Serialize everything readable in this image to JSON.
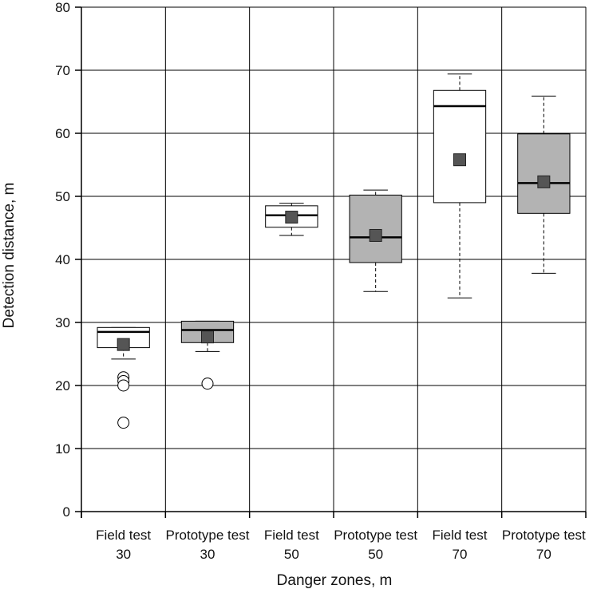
{
  "chart_data": {
    "type": "box",
    "title": "",
    "xlabel": "Danger zones, m",
    "ylabel": "Detection distance, m",
    "ylim": [
      0,
      80
    ],
    "yticks": [
      0,
      10,
      20,
      30,
      40,
      50,
      60,
      70,
      80
    ],
    "grid": true,
    "categories": [
      {
        "line1": "Field test",
        "line2": "30"
      },
      {
        "line1": "Prototype test",
        "line2": "30"
      },
      {
        "line1": "Field test",
        "line2": "50"
      },
      {
        "line1": "Prototype test",
        "line2": "50"
      },
      {
        "line1": "Field test",
        "line2": "70"
      },
      {
        "line1": "Prototype test",
        "line2": "70"
      }
    ],
    "boxes": [
      {
        "whisker_low": 24.2,
        "q1": 26.0,
        "median": 28.5,
        "q3": 29.2,
        "whisker_high": 29.2,
        "mean": 26.5,
        "outliers": [
          21.3,
          20.7,
          20.0,
          14.1
        ],
        "fill": "#ffffff"
      },
      {
        "whisker_low": 25.4,
        "q1": 26.8,
        "median": 28.8,
        "q3": 30.2,
        "whisker_high": 30.2,
        "mean": 27.7,
        "outliers": [
          20.3
        ],
        "fill": "#b3b3b3"
      },
      {
        "whisker_low": 43.8,
        "q1": 45.1,
        "median": 47.0,
        "q3": 48.5,
        "whisker_high": 48.9,
        "mean": 46.7,
        "outliers": [],
        "fill": "#ffffff"
      },
      {
        "whisker_low": 34.9,
        "q1": 39.5,
        "median": 43.5,
        "q3": 50.2,
        "whisker_high": 51.0,
        "mean": 43.8,
        "outliers": [],
        "fill": "#b3b3b3"
      },
      {
        "whisker_low": 33.9,
        "q1": 49.0,
        "median": 64.3,
        "q3": 66.8,
        "whisker_high": 69.4,
        "mean": 55.8,
        "outliers": [],
        "fill": "#ffffff"
      },
      {
        "whisker_low": 37.8,
        "q1": 47.3,
        "median": 52.1,
        "q3": 59.9,
        "whisker_high": 65.9,
        "mean": 52.3,
        "outliers": [],
        "fill": "#b3b3b3"
      }
    ],
    "colors": {
      "mean_marker": "#555555",
      "axis": "#000000",
      "grid": "#000000"
    }
  }
}
